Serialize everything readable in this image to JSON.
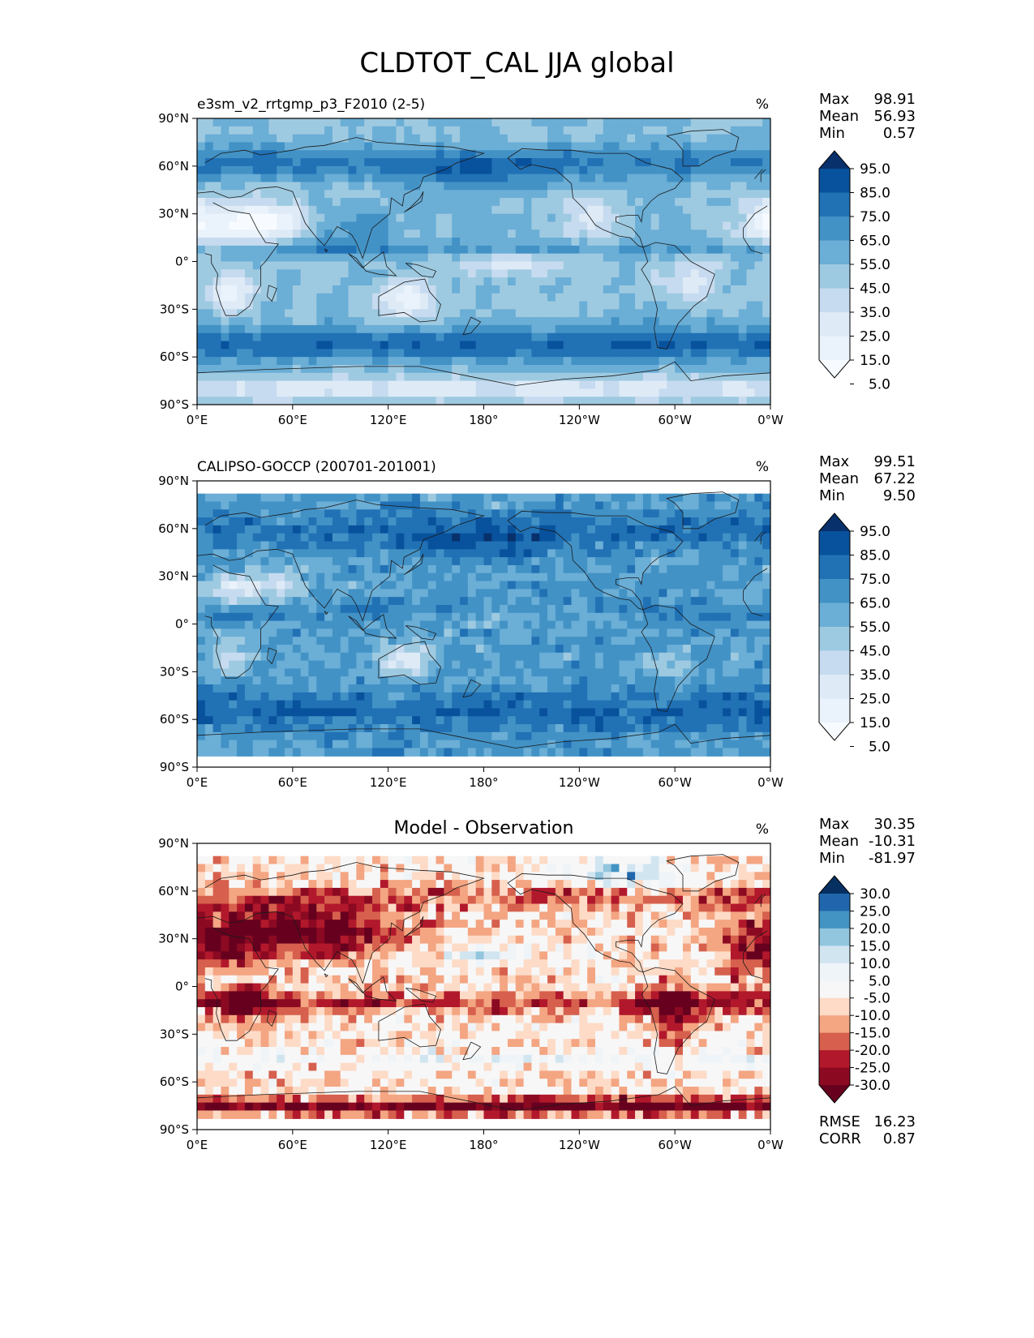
{
  "figure": {
    "title": "CLDTOT_CAL JJA global"
  },
  "chart_data": [
    {
      "type": "heatmap",
      "title": "e3sm_v2_rrtgmp_p3_F2010 (2-5)",
      "title_position": "left",
      "units": "%",
      "xticks": [
        "0°E",
        "60°E",
        "120°E",
        "180°",
        "120°W",
        "60°W",
        "0°W"
      ],
      "yticks": [
        "90°N",
        "60°N",
        "30°N",
        "0°",
        "30°S",
        "60°S",
        "90°S"
      ],
      "xlim": [
        0,
        360
      ],
      "ylim": [
        -90,
        90
      ],
      "stats": [
        [
          "Max",
          "98.91"
        ],
        [
          "Mean",
          "56.93"
        ],
        [
          "Min",
          "0.57"
        ]
      ],
      "colorbar": {
        "labels": [
          "95.0",
          "85.0",
          "75.0",
          "65.0",
          "55.0",
          "45.0",
          "35.0",
          "25.0",
          "15.0",
          "5.0"
        ],
        "colors": [
          "#08306b",
          "#08519c",
          "#2171b5",
          "#4292c6",
          "#6baed6",
          "#9ecae1",
          "#c6dbef",
          "#deebf7",
          "#eaf2fb",
          "#f7fbff"
        ]
      },
      "field": "model"
    },
    {
      "type": "heatmap",
      "title": "CALIPSO-GOCCP (200701-201001)",
      "title_position": "left",
      "units": "%",
      "xticks": [
        "0°E",
        "60°E",
        "120°E",
        "180°",
        "120°W",
        "60°W",
        "0°W"
      ],
      "yticks": [
        "90°N",
        "60°N",
        "30°N",
        "0°",
        "30°S",
        "60°S",
        "90°S"
      ],
      "xlim": [
        0,
        360
      ],
      "ylim": [
        -90,
        90
      ],
      "stats": [
        [
          "Max",
          "99.51"
        ],
        [
          "Mean",
          "67.22"
        ],
        [
          "Min",
          "9.50"
        ]
      ],
      "colorbar": {
        "labels": [
          "95.0",
          "85.0",
          "75.0",
          "65.0",
          "55.0",
          "45.0",
          "35.0",
          "25.0",
          "15.0",
          "5.0"
        ],
        "colors": [
          "#08306b",
          "#08519c",
          "#2171b5",
          "#4292c6",
          "#6baed6",
          "#9ecae1",
          "#c6dbef",
          "#deebf7",
          "#eaf2fb",
          "#f7fbff"
        ]
      },
      "field": "obs"
    },
    {
      "type": "heatmap",
      "title": "Model - Observation",
      "title_position": "center",
      "units": "%",
      "xticks": [
        "0°E",
        "60°E",
        "120°E",
        "180°",
        "120°W",
        "60°W",
        "0°W"
      ],
      "yticks": [
        "90°N",
        "60°N",
        "30°N",
        "0°",
        "30°S",
        "60°S",
        "90°S"
      ],
      "xlim": [
        0,
        360
      ],
      "ylim": [
        -90,
        90
      ],
      "stats": [
        [
          "Max",
          "30.35"
        ],
        [
          "Mean",
          "-10.31"
        ],
        [
          "Min",
          "-81.97"
        ]
      ],
      "extra_stats": [
        [
          "RMSE",
          "16.23"
        ],
        [
          "CORR",
          "0.87"
        ]
      ],
      "colorbar": {
        "labels": [
          "30.0",
          "25.0",
          "20.0",
          "15.0",
          "10.0",
          "5.0",
          "-5.0",
          "-10.0",
          "-15.0",
          "-20.0",
          "-25.0",
          "-30.0"
        ],
        "colors": [
          "#053061",
          "#2166ac",
          "#4393c3",
          "#92c5de",
          "#d1e5f0",
          "#eef4f8",
          "#f7f7f7",
          "#fddbc7",
          "#f4a582",
          "#d6604d",
          "#b2182b",
          "#8b0a22",
          "#67001f"
        ]
      },
      "field": "diff"
    }
  ]
}
